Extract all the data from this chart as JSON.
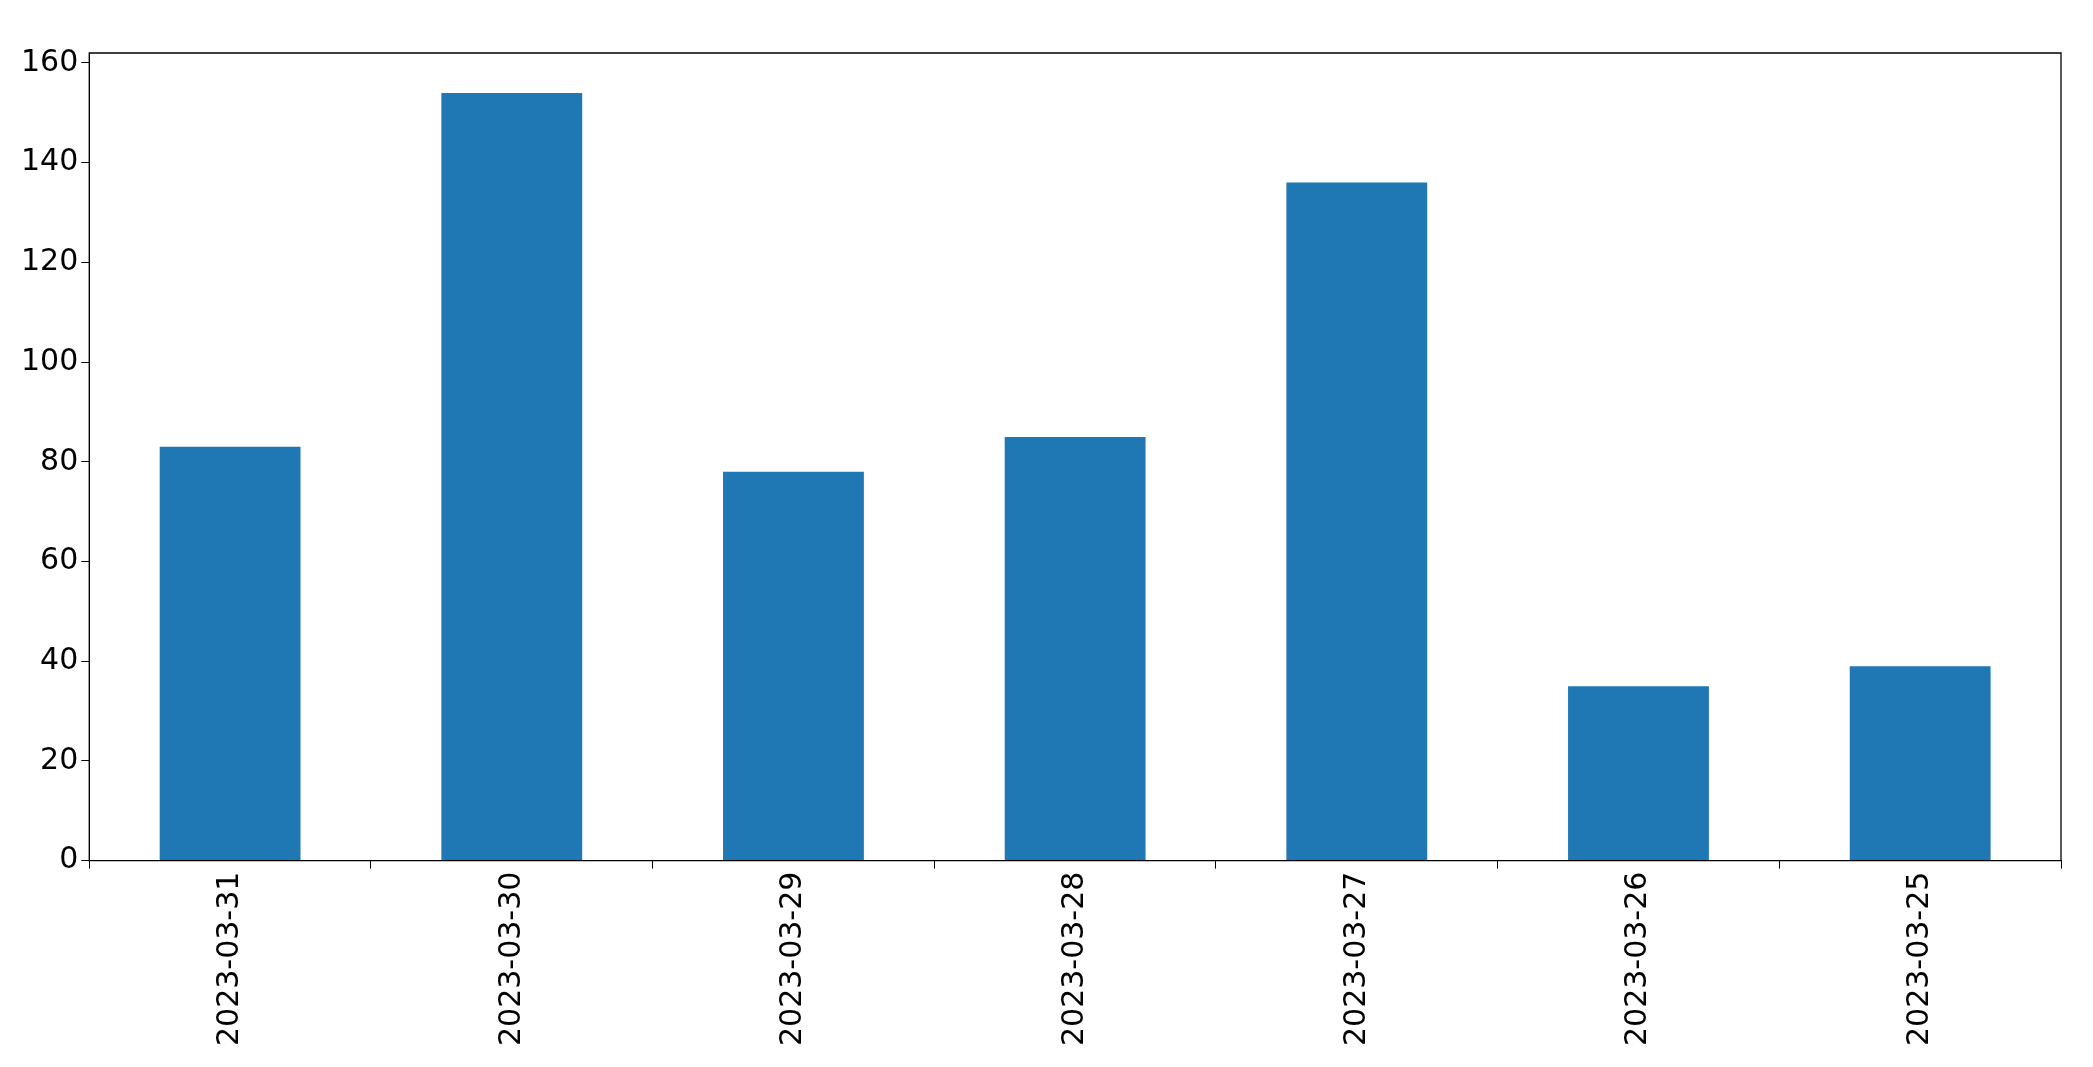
{
  "chart_data": {
    "type": "bar",
    "categories": [
      "2023-03-31",
      "2023-03-30",
      "2023-03-29",
      "2023-03-28",
      "2023-03-27",
      "2023-03-26",
      "2023-03-25"
    ],
    "values": [
      83,
      154,
      78,
      85,
      136,
      35,
      39
    ],
    "color": "#1f77b4",
    "ylim": [
      0,
      162
    ],
    "yticks": [
      0,
      20,
      40,
      60,
      80,
      100,
      120,
      140,
      160
    ]
  }
}
